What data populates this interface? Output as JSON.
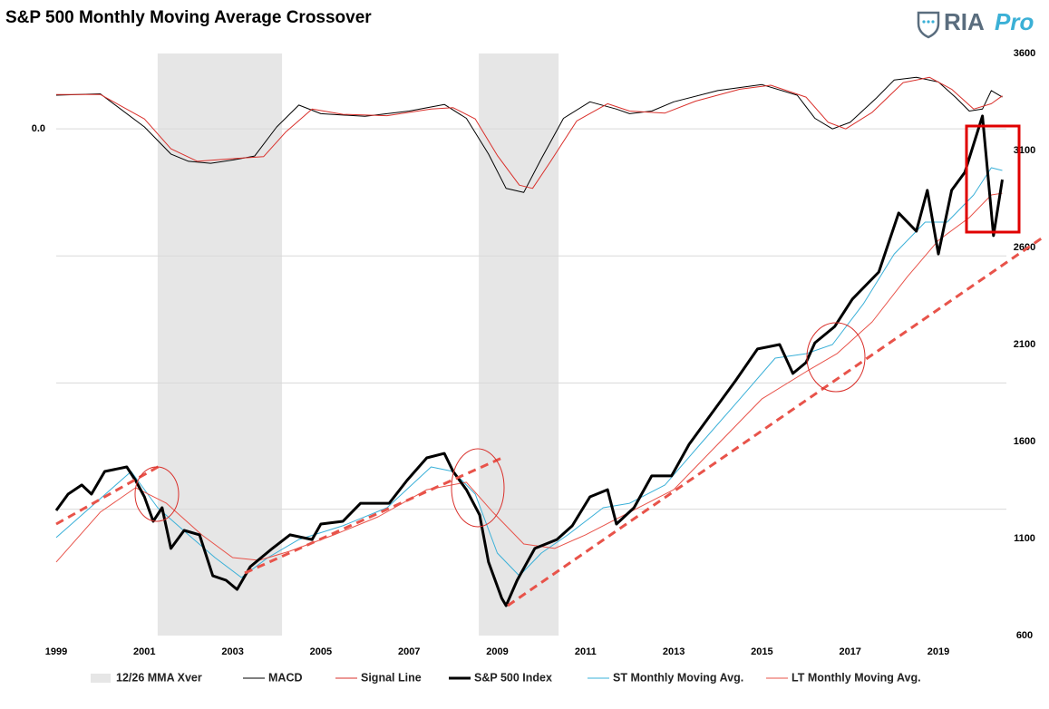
{
  "logo": {
    "text": "RIA",
    "accent": "Pro"
  },
  "chart_data": {
    "type": "line",
    "title": "S&P 500 Monthly Moving Average Crossover",
    "xlim": [
      1999,
      2020.48
    ],
    "xticks": [
      1999,
      2001,
      2003,
      2005,
      2007,
      2009,
      2011,
      2013,
      2015,
      2017,
      2019
    ],
    "ylim": [
      600,
      3600
    ],
    "yticks": [
      600,
      1100,
      1600,
      2100,
      2600,
      3100,
      3600
    ],
    "y2lim": [
      -766,
      114
    ],
    "y2ticks": [
      {
        "value": 0,
        "label": "0.0"
      },
      {
        "value": -192,
        "label": null
      },
      {
        "value": -384,
        "label": null
      },
      {
        "value": -575,
        "label": null
      }
    ],
    "grid": true,
    "legend": "bottom",
    "series": [
      {
        "name": "12/26 MMA Xver",
        "color": "#e6e6e6",
        "periods": [
          [
            2001.3,
            2004.12
          ],
          [
            2008.58,
            2010.39
          ]
        ]
      },
      {
        "name": "MACD",
        "color": "#000000",
        "width": 1,
        "axis": "y2",
        "x": [
          1999.0,
          2000.0,
          2001.0,
          2001.6,
          2002.0,
          2002.5,
          2003.0,
          2003.5,
          2004.0,
          2004.5,
          2005.0,
          2006.0,
          2007.0,
          2007.8,
          2008.3,
          2008.8,
          2009.2,
          2009.6,
          2010.0,
          2010.5,
          2011.1,
          2011.7,
          2012.0,
          2012.5,
          2013.0,
          2014.0,
          2015.0,
          2015.8,
          2016.2,
          2016.6,
          2017.0,
          2017.6,
          2018.0,
          2018.5,
          2019.0,
          2019.4,
          2019.7,
          2020.0,
          2020.2,
          2020.45
        ],
        "values": [
          51,
          53,
          3,
          -38,
          -49,
          -52,
          -47,
          -41,
          3,
          36,
          23,
          19,
          27,
          37,
          16,
          -38,
          -90,
          -96,
          -45,
          16,
          41,
          30,
          23,
          27,
          41,
          58,
          67,
          51,
          16,
          0,
          10,
          47,
          74,
          78,
          71,
          47,
          27,
          30,
          58,
          48
        ]
      },
      {
        "name": "Signal Line",
        "color": "#d9302b",
        "width": 1,
        "axis": "y2",
        "x": [
          1999.0,
          2000.0,
          2001.0,
          2001.6,
          2002.2,
          2003.0,
          2003.7,
          2004.2,
          2004.8,
          2005.5,
          2006.5,
          2007.5,
          2008.0,
          2008.5,
          2009.0,
          2009.5,
          2009.8,
          2010.2,
          2010.8,
          2011.5,
          2012.0,
          2012.8,
          2013.5,
          2014.5,
          2015.2,
          2016.0,
          2016.5,
          2016.9,
          2017.5,
          2018.2,
          2018.8,
          2019.3,
          2019.8,
          2020.2,
          2020.45
        ],
        "values": [
          52,
          52,
          15,
          -30,
          -49,
          -45,
          -42,
          -5,
          30,
          22,
          20,
          30,
          32,
          15,
          -40,
          -85,
          -90,
          -50,
          12,
          38,
          27,
          24,
          42,
          60,
          66,
          48,
          10,
          0,
          25,
          70,
          78,
          60,
          30,
          38,
          50
        ]
      },
      {
        "name": "S&P 500 Index",
        "color": "#000000",
        "width": 3,
        "x": [
          1999.0,
          1999.27,
          1999.58,
          1999.8,
          2000.1,
          2000.6,
          2000.8,
          2001.0,
          2001.2,
          2001.4,
          2001.6,
          2001.9,
          2002.25,
          2002.55,
          2002.85,
          2003.1,
          2003.4,
          2003.9,
          2004.3,
          2004.8,
          2005.0,
          2005.5,
          2005.9,
          2006.55,
          2006.95,
          2007.4,
          2007.8,
          2008.0,
          2008.3,
          2008.6,
          2008.8,
          2009.1,
          2009.2,
          2009.45,
          2009.85,
          2010.35,
          2010.7,
          2011.1,
          2011.5,
          2011.7,
          2012.1,
          2012.5,
          2012.95,
          2013.35,
          2013.95,
          2014.4,
          2014.9,
          2015.4,
          2015.7,
          2016.0,
          2016.2,
          2016.65,
          2017.05,
          2017.65,
          2018.1,
          2018.5,
          2018.75,
          2019.0,
          2019.3,
          2019.6,
          2020.0,
          2020.25,
          2020.45
        ],
        "values": [
          1245,
          1329,
          1376,
          1329,
          1446,
          1469,
          1399,
          1315,
          1189,
          1259,
          1049,
          1142,
          1119,
          908,
          885,
          838,
          955,
          1049,
          1119,
          1095,
          1175,
          1189,
          1282,
          1282,
          1399,
          1516,
          1539,
          1446,
          1352,
          1222,
          979,
          792,
          754,
          885,
          1049,
          1095,
          1166,
          1315,
          1352,
          1175,
          1259,
          1423,
          1423,
          1586,
          1773,
          1913,
          2077,
          2100,
          1951,
          2007,
          2109,
          2193,
          2334,
          2474,
          2778,
          2684,
          2895,
          2567,
          2895,
          2988,
          3278,
          2661,
          2950
        ]
      },
      {
        "name": "ST Monthly Moving Avg.",
        "color": "#3ab0d8",
        "width": 1,
        "x": [
          1999.0,
          2000.7,
          2001.3,
          2002.0,
          2002.6,
          2003.2,
          2003.8,
          2004.5,
          2005.5,
          2006.5,
          2007.5,
          2008.0,
          2008.5,
          2009.0,
          2009.5,
          2010.0,
          2010.6,
          2011.4,
          2012.0,
          2012.8,
          2013.6,
          2014.5,
          2015.3,
          2016.0,
          2016.6,
          2017.3,
          2018.0,
          2018.7,
          2019.2,
          2019.8,
          2020.2,
          2020.45
        ],
        "values": [
          1105,
          1446,
          1259,
          1119,
          1002,
          899,
          1002,
          1095,
          1166,
          1259,
          1469,
          1446,
          1329,
          1025,
          908,
          1025,
          1119,
          1259,
          1282,
          1376,
          1586,
          1820,
          2030,
          2053,
          2100,
          2310,
          2567,
          2731,
          2731,
          2871,
          3011,
          2997
        ]
      },
      {
        "name": "LT Monthly Moving Avg.",
        "color": "#e8534a",
        "width": 1,
        "x": [
          1999.0,
          2000.0,
          2000.8,
          2001.5,
          2002.3,
          2003.0,
          2003.6,
          2004.3,
          2005.3,
          2006.3,
          2007.4,
          2008.3,
          2008.9,
          2009.6,
          2010.3,
          2011.0,
          2012.0,
          2013.0,
          2014.0,
          2015.0,
          2016.0,
          2016.7,
          2017.5,
          2018.3,
          2019.0,
          2019.7,
          2020.2,
          2020.45
        ],
        "values": [
          979,
          1236,
          1362,
          1282,
          1119,
          1002,
          988,
          1035,
          1119,
          1212,
          1352,
          1390,
          1236,
          1072,
          1049,
          1119,
          1236,
          1352,
          1586,
          1820,
          1960,
          2053,
          2217,
          2450,
          2637,
          2754,
          2871,
          2880
        ]
      }
    ]
  }
}
